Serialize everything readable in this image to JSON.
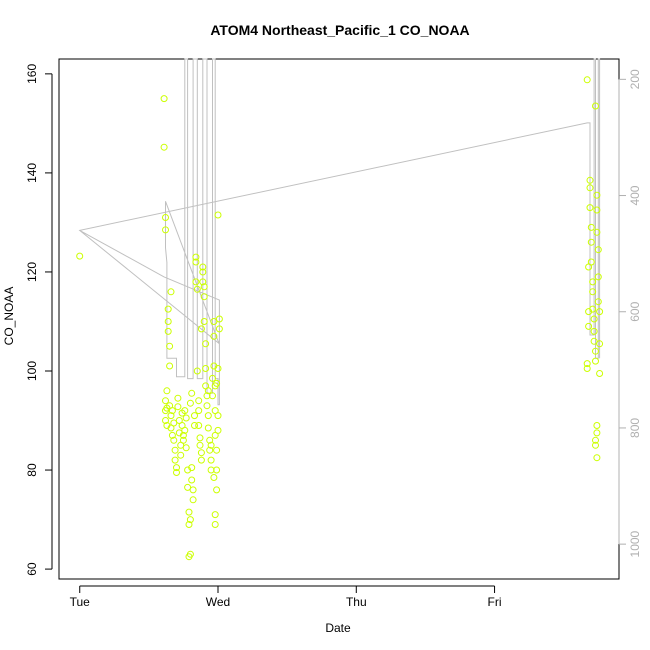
{
  "chart_data": {
    "type": "scatter",
    "title": "ATOM4 Northeast_Pacific_1 CO_NOAA",
    "xlabel": "Date",
    "ylabel": "CO_NOAA",
    "x_tick_labels": [
      "Tue",
      "Wed",
      "Thu",
      "Fri"
    ],
    "x_ticks_day": [
      0,
      1,
      2,
      3
    ],
    "xlim_day": [
      -0.15,
      3.9
    ],
    "y_ticks": [
      60,
      80,
      100,
      120,
      140,
      160
    ],
    "ylim": [
      58,
      163
    ],
    "y2_ticks": [
      200,
      400,
      600,
      800,
      1000
    ],
    "y2lim": [
      1060,
      165
    ],
    "y2_reversed": true,
    "colors": {
      "points": "#ccff00",
      "line": "#c0c0c0",
      "axis": "#000000",
      "right_axis": "#b0b0b0"
    },
    "series": [
      {
        "kind": "points",
        "axis": "left",
        "points": [
          [
            0.0,
            123.2
          ],
          [
            0.61,
            155.0
          ],
          [
            0.61,
            145.2
          ],
          [
            0.62,
            131.0
          ],
          [
            0.62,
            128.5
          ],
          [
            0.62,
            94.0
          ],
          [
            0.62,
            92.0
          ],
          [
            0.62,
            90.0
          ],
          [
            0.63,
            96.0
          ],
          [
            0.63,
            92.5
          ],
          [
            0.63,
            89.0
          ],
          [
            0.64,
            112.5
          ],
          [
            0.64,
            110.0
          ],
          [
            0.64,
            108.0
          ],
          [
            0.65,
            105.0
          ],
          [
            0.65,
            101.0
          ],
          [
            0.66,
            116.0
          ],
          [
            0.65,
            93.0
          ],
          [
            0.66,
            91.0
          ],
          [
            0.66,
            88.5
          ],
          [
            0.67,
            87.0
          ],
          [
            0.67,
            92.0
          ],
          [
            0.68,
            89.5
          ],
          [
            0.68,
            86.0
          ],
          [
            0.69,
            84.0
          ],
          [
            0.69,
            82.0
          ],
          [
            0.7,
            80.5
          ],
          [
            0.7,
            79.5
          ],
          [
            0.71,
            94.5
          ],
          [
            0.71,
            92.8
          ],
          [
            0.72,
            90.0
          ],
          [
            0.72,
            87.5
          ],
          [
            0.73,
            85.0
          ],
          [
            0.73,
            83.0
          ],
          [
            0.74,
            91.5
          ],
          [
            0.74,
            89.0
          ],
          [
            0.75,
            87.0
          ],
          [
            0.75,
            86.0
          ],
          [
            0.76,
            88.0
          ],
          [
            0.76,
            92.0
          ],
          [
            0.77,
            90.5
          ],
          [
            0.77,
            84.5
          ],
          [
            0.78,
            80.0
          ],
          [
            0.78,
            76.5
          ],
          [
            0.79,
            71.5
          ],
          [
            0.79,
            69.0
          ],
          [
            0.8,
            70.0
          ],
          [
            0.8,
            63.0
          ],
          [
            0.79,
            62.5
          ],
          [
            0.81,
            80.5
          ],
          [
            0.81,
            78.0
          ],
          [
            0.82,
            76.0
          ],
          [
            0.82,
            74.0
          ],
          [
            0.8,
            93.5
          ],
          [
            0.81,
            95.5
          ],
          [
            0.83,
            91.0
          ],
          [
            0.83,
            89.0
          ],
          [
            0.84,
            123.0
          ],
          [
            0.84,
            122.0
          ],
          [
            0.84,
            118.0
          ],
          [
            0.85,
            116.5
          ],
          [
            0.85,
            100.0
          ],
          [
            0.86,
            94.0
          ],
          [
            0.86,
            92.0
          ],
          [
            0.86,
            89.0
          ],
          [
            0.87,
            86.5
          ],
          [
            0.87,
            85.0
          ],
          [
            0.88,
            83.5
          ],
          [
            0.88,
            82.0
          ],
          [
            0.89,
            121.0
          ],
          [
            0.89,
            120.0
          ],
          [
            0.89,
            118.0
          ],
          [
            0.9,
            117.0
          ],
          [
            0.9,
            115.0
          ],
          [
            0.9,
            110.0
          ],
          [
            0.91,
            105.5
          ],
          [
            0.91,
            97.0
          ],
          [
            0.92,
            95.0
          ],
          [
            0.92,
            93.0
          ],
          [
            0.93,
            91.0
          ],
          [
            0.93,
            88.5
          ],
          [
            0.94,
            86.0
          ],
          [
            0.94,
            84.0
          ],
          [
            0.95,
            82.0
          ],
          [
            0.95,
            80.0
          ],
          [
            0.96,
            98.5
          ],
          [
            0.96,
            95.0
          ],
          [
            0.97,
            110.0
          ],
          [
            0.97,
            107.0
          ],
          [
            0.97,
            101.0
          ],
          [
            0.98,
            97.0
          ],
          [
            0.98,
            92.0
          ],
          [
            0.98,
            87.0
          ],
          [
            0.99,
            84.0
          ],
          [
            0.99,
            80.0
          ],
          [
            0.99,
            76.0
          ],
          [
            0.98,
            71.0
          ],
          [
            0.98,
            69.0
          ],
          [
            1.0,
            91.0
          ],
          [
            1.0,
            88.0
          ],
          [
            1.01,
            108.5
          ],
          [
            1.01,
            110.5
          ],
          [
            1.0,
            100.5
          ],
          [
            0.99,
            97.5
          ],
          [
            0.97,
            78.5
          ],
          [
            1.0,
            131.5
          ],
          [
            0.95,
            85.0
          ],
          [
            0.93,
            96.0
          ],
          [
            0.91,
            100.5
          ],
          [
            0.88,
            108.5
          ],
          [
            3.67,
            158.8
          ],
          [
            3.67,
            101.5
          ],
          [
            3.67,
            100.5
          ],
          [
            3.68,
            112.0
          ],
          [
            3.68,
            109.0
          ],
          [
            3.68,
            121.0
          ],
          [
            3.69,
            138.5
          ],
          [
            3.69,
            137.0
          ],
          [
            3.69,
            133.0
          ],
          [
            3.7,
            129.0
          ],
          [
            3.7,
            126.0
          ],
          [
            3.7,
            122.0
          ],
          [
            3.71,
            118.0
          ],
          [
            3.71,
            116.0
          ],
          [
            3.71,
            112.5
          ],
          [
            3.72,
            110.5
          ],
          [
            3.72,
            108.0
          ],
          [
            3.72,
            106.0
          ],
          [
            3.73,
            104.0
          ],
          [
            3.73,
            102.0
          ],
          [
            3.74,
            135.5
          ],
          [
            3.74,
            132.5
          ],
          [
            3.74,
            128.0
          ],
          [
            3.75,
            124.5
          ],
          [
            3.75,
            119.0
          ],
          [
            3.75,
            114.0
          ],
          [
            3.76,
            112.0
          ],
          [
            3.76,
            105.5
          ],
          [
            3.76,
            99.5
          ],
          [
            3.73,
            153.5
          ],
          [
            3.73,
            86.0
          ],
          [
            3.74,
            89.0
          ],
          [
            3.74,
            87.5
          ],
          [
            3.73,
            85.0
          ],
          [
            3.74,
            82.5
          ]
        ]
      },
      {
        "kind": "line",
        "axis": "right",
        "points": [
          [
            0.0,
            460
          ],
          [
            0.61,
            540
          ],
          [
            1.01,
            580
          ],
          [
            1.01,
            655
          ],
          [
            1.0,
            650
          ],
          [
            0.62,
            410
          ],
          [
            0.62,
            490
          ],
          [
            0.63,
            515
          ],
          [
            0.63,
            680
          ],
          [
            0.7,
            680
          ],
          [
            0.7,
            712
          ],
          [
            0.76,
            712
          ],
          [
            0.76,
            165
          ],
          [
            0.78,
            165
          ],
          [
            0.78,
            715
          ],
          [
            0.82,
            715
          ],
          [
            0.82,
            165
          ],
          [
            0.85,
            165
          ],
          [
            0.85,
            715
          ],
          [
            0.89,
            715
          ],
          [
            0.89,
            165
          ],
          [
            0.92,
            165
          ],
          [
            0.92,
            740
          ],
          [
            0.96,
            740
          ],
          [
            0.96,
            165
          ],
          [
            0.98,
            165
          ],
          [
            0.98,
            715
          ],
          [
            1.0,
            715
          ],
          [
            1.0,
            760
          ],
          [
            1.01,
            760
          ],
          [
            1.01,
            655
          ],
          [
            0.0,
            460
          ],
          [
            3.67,
            275
          ],
          [
            3.69,
            275
          ],
          [
            3.69,
            640
          ],
          [
            3.72,
            640
          ],
          [
            3.72,
            165
          ],
          [
            3.73,
            165
          ],
          [
            3.73,
            680
          ],
          [
            3.75,
            680
          ],
          [
            3.75,
            165
          ],
          [
            3.76,
            165
          ],
          [
            3.76,
            680
          ]
        ]
      }
    ]
  }
}
